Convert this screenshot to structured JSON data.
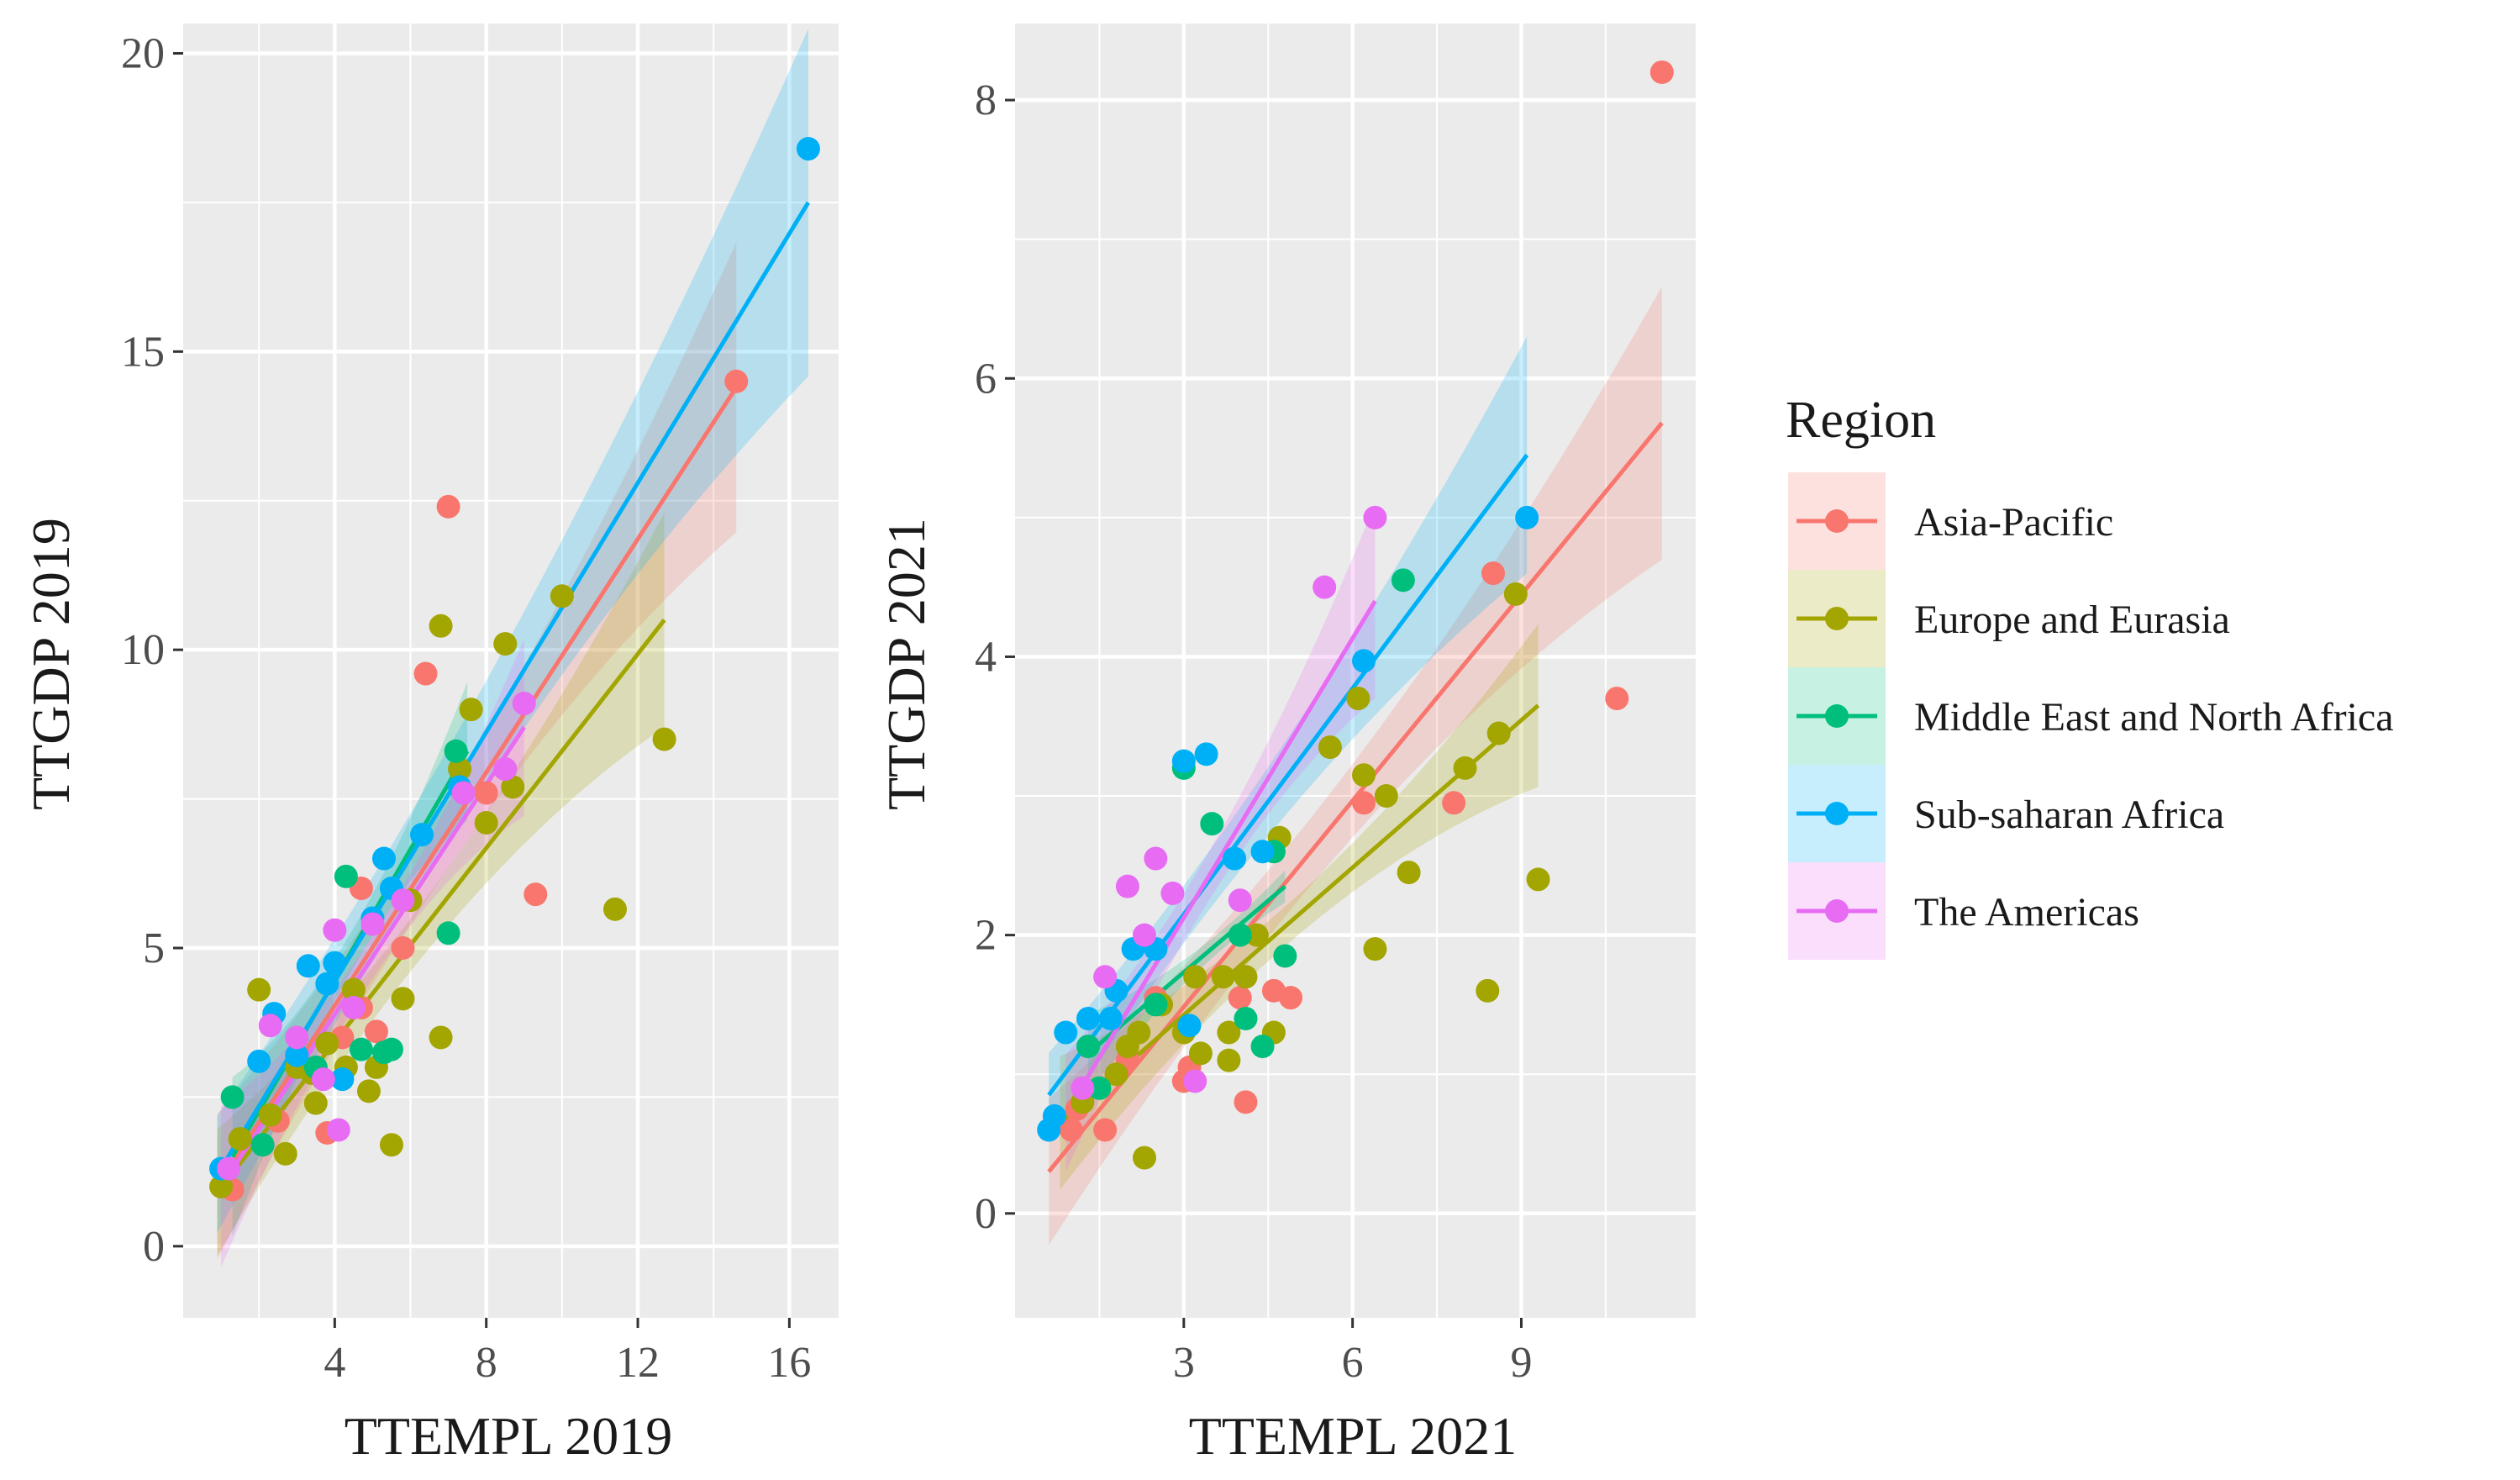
{
  "legend": {
    "title": "Region",
    "placement": "right",
    "entries": [
      {
        "name": "Asia-Pacific",
        "color": "#F8766D"
      },
      {
        "name": "Europe and Eurasia",
        "color": "#A3A500"
      },
      {
        "name": "Middle East and North Africa",
        "color": "#00BF7D"
      },
      {
        "name": "Sub-saharan Africa",
        "color": "#00B0F6"
      },
      {
        "name": "The Americas",
        "color": "#E76BF3"
      }
    ]
  },
  "chart_data": [
    {
      "type": "scatter",
      "title": "",
      "xlabel": "TTEMPL 2019",
      "ylabel": "TTGDP 2019",
      "xlim": [
        0,
        17.3
      ],
      "ylim": [
        -1.2,
        20.5
      ],
      "xticks": [
        4,
        8,
        12,
        16
      ],
      "yticks": [
        0,
        5,
        10,
        15,
        20
      ],
      "grid": true,
      "smooth": "linear fit with 95% confidence band per region",
      "series": [
        {
          "name": "Asia-Pacific",
          "color": "#F8766D",
          "points": [
            [
              1.3,
              0.95
            ],
            [
              2.5,
              2.1
            ],
            [
              3.5,
              3.0
            ],
            [
              3.8,
              1.9
            ],
            [
              4.2,
              3.5
            ],
            [
              4.7,
              4.0
            ],
            [
              4.7,
              6.0
            ],
            [
              5.1,
              3.6
            ],
            [
              5.8,
              5.0
            ],
            [
              6.4,
              9.6
            ],
            [
              7.0,
              12.4
            ],
            [
              8.0,
              7.6
            ],
            [
              8.5,
              8.0
            ],
            [
              9.3,
              5.9
            ],
            [
              14.6,
              14.5
            ]
          ],
          "fit": {
            "x": [
              0.9,
              14.6
            ],
            "y": [
              1.0,
              14.4
            ]
          }
        },
        {
          "name": "Europe and Eurasia",
          "color": "#A3A500",
          "points": [
            [
              1.0,
              1.0
            ],
            [
              1.5,
              1.8
            ],
            [
              2.0,
              4.3
            ],
            [
              2.3,
              2.2
            ],
            [
              2.7,
              1.55
            ],
            [
              3.0,
              3.0
            ],
            [
              3.4,
              2.9
            ],
            [
              3.5,
              2.4
            ],
            [
              3.8,
              3.4
            ],
            [
              4.3,
              3.0
            ],
            [
              4.5,
              4.3
            ],
            [
              4.9,
              2.6
            ],
            [
              5.1,
              3.0
            ],
            [
              5.5,
              1.7
            ],
            [
              5.8,
              4.15
            ],
            [
              6.0,
              5.8
            ],
            [
              6.8,
              3.5
            ],
            [
              6.8,
              10.4
            ],
            [
              7.3,
              8.0
            ],
            [
              7.6,
              9.0
            ],
            [
              8.0,
              7.1
            ],
            [
              8.5,
              10.1
            ],
            [
              8.7,
              7.7
            ],
            [
              10.0,
              10.9
            ],
            [
              11.4,
              5.65
            ],
            [
              12.7,
              8.5
            ]
          ],
          "fit": {
            "x": [
              0.9,
              12.7
            ],
            "y": [
              0.9,
              10.5
            ]
          }
        },
        {
          "name": "Middle East and North Africa",
          "color": "#00BF7D",
          "points": [
            [
              1.3,
              2.5
            ],
            [
              2.1,
              1.7
            ],
            [
              3.5,
              3.0
            ],
            [
              4.3,
              6.2
            ],
            [
              4.7,
              3.3
            ],
            [
              5.3,
              3.25
            ],
            [
              5.5,
              3.3
            ],
            [
              7.0,
              5.25
            ],
            [
              7.2,
              8.3
            ]
          ],
          "fit": {
            "x": [
              1.3,
              7.5
            ],
            "y": [
              1.5,
              8.3
            ]
          }
        },
        {
          "name": "Sub-saharan Africa",
          "color": "#00B0F6",
          "points": [
            [
              1.0,
              1.3
            ],
            [
              2.0,
              3.1
            ],
            [
              2.4,
              3.9
            ],
            [
              3.0,
              3.2
            ],
            [
              3.3,
              4.7
            ],
            [
              3.8,
              4.4
            ],
            [
              4.0,
              4.75
            ],
            [
              4.2,
              2.8
            ],
            [
              5.0,
              5.5
            ],
            [
              5.3,
              6.5
            ],
            [
              5.5,
              6.0
            ],
            [
              6.3,
              6.9
            ],
            [
              7.3,
              7.7
            ],
            [
              16.5,
              18.4
            ]
          ],
          "fit": {
            "x": [
              0.9,
              16.5
            ],
            "y": [
              1.2,
              17.5
            ]
          }
        },
        {
          "name": "The Americas",
          "color": "#E76BF3",
          "points": [
            [
              1.2,
              1.3
            ],
            [
              2.3,
              3.7
            ],
            [
              3.0,
              3.5
            ],
            [
              3.7,
              2.8
            ],
            [
              4.0,
              5.3
            ],
            [
              4.1,
              1.95
            ],
            [
              4.5,
              4.0
            ],
            [
              5.0,
              5.4
            ],
            [
              5.8,
              5.8
            ],
            [
              7.4,
              7.6
            ],
            [
              8.5,
              8.0
            ],
            [
              9.0,
              9.1
            ]
          ],
          "fit": {
            "x": [
              1.0,
              9.0
            ],
            "y": [
              1.0,
              8.7
            ]
          }
        }
      ]
    },
    {
      "type": "scatter",
      "title": "",
      "xlabel": "TTEMPL 2021",
      "ylabel": "TTGDP 2021",
      "xlim": [
        0.0,
        12.1
      ],
      "ylim": [
        -0.75,
        8.55
      ],
      "xticks": [
        3,
        6,
        9
      ],
      "yticks": [
        0,
        2,
        4,
        6,
        8
      ],
      "grid": true,
      "smooth": "linear fit with 95% confidence band per region",
      "series": [
        {
          "name": "Asia-Pacific",
          "color": "#F8766D",
          "points": [
            [
              1.0,
              0.6
            ],
            [
              1.1,
              0.75
            ],
            [
              1.6,
              0.6
            ],
            [
              2.0,
              1.1
            ],
            [
              2.5,
              1.55
            ],
            [
              3.0,
              0.95
            ],
            [
              3.1,
              1.05
            ],
            [
              4.0,
              1.55
            ],
            [
              4.1,
              0.8
            ],
            [
              4.6,
              1.6
            ],
            [
              4.9,
              1.55
            ],
            [
              6.2,
              2.95
            ],
            [
              7.8,
              2.95
            ],
            [
              8.5,
              4.6
            ],
            [
              10.7,
              3.7
            ],
            [
              11.5,
              8.2
            ]
          ],
          "fit": {
            "x": [
              0.6,
              11.5
            ],
            "y": [
              0.3,
              5.68
            ]
          }
        },
        {
          "name": "Europe and Eurasia",
          "color": "#A3A500",
          "points": [
            [
              1.2,
              0.8
            ],
            [
              1.5,
              0.9
            ],
            [
              1.8,
              1.0
            ],
            [
              2.0,
              1.2
            ],
            [
              2.2,
              1.3
            ],
            [
              2.3,
              0.4
            ],
            [
              2.6,
              1.5
            ],
            [
              3.0,
              1.3
            ],
            [
              3.2,
              1.7
            ],
            [
              3.3,
              1.15
            ],
            [
              3.7,
              1.7
            ],
            [
              3.8,
              1.1
            ],
            [
              3.8,
              1.3
            ],
            [
              4.1,
              1.7
            ],
            [
              4.3,
              2.0
            ],
            [
              4.6,
              1.3
            ],
            [
              4.7,
              2.7
            ],
            [
              5.6,
              3.35
            ],
            [
              6.1,
              3.7
            ],
            [
              6.2,
              3.15
            ],
            [
              6.4,
              1.9
            ],
            [
              6.6,
              3.0
            ],
            [
              7.0,
              2.45
            ],
            [
              8.0,
              3.2
            ],
            [
              8.4,
              1.6
            ],
            [
              8.6,
              3.45
            ],
            [
              8.9,
              4.45
            ],
            [
              9.3,
              2.4
            ]
          ],
          "fit": {
            "x": [
              0.8,
              9.3
            ],
            "y": [
              0.65,
              3.65
            ]
          }
        },
        {
          "name": "Middle East and North Africa",
          "color": "#00BF7D",
          "points": [
            [
              1.3,
              1.2
            ],
            [
              1.5,
              0.9
            ],
            [
              2.5,
              1.5
            ],
            [
              3.0,
              3.2
            ],
            [
              3.5,
              2.8
            ],
            [
              4.0,
              2.0
            ],
            [
              4.1,
              1.4
            ],
            [
              4.4,
              1.2
            ],
            [
              4.6,
              2.6
            ],
            [
              4.8,
              1.85
            ],
            [
              6.9,
              4.55
            ]
          ],
          "fit": {
            "x": [
              1.3,
              4.8
            ],
            "y": [
              1.15,
              2.35
            ]
          }
        },
        {
          "name": "Sub-saharan Africa",
          "color": "#00B0F6",
          "points": [
            [
              0.6,
              0.6
            ],
            [
              0.7,
              0.7
            ],
            [
              0.9,
              1.3
            ],
            [
              1.3,
              1.4
            ],
            [
              1.7,
              1.4
            ],
            [
              1.8,
              1.6
            ],
            [
              2.1,
              1.9
            ],
            [
              2.5,
              1.9
            ],
            [
              3.0,
              3.25
            ],
            [
              3.1,
              1.35
            ],
            [
              3.4,
              3.3
            ],
            [
              3.9,
              2.55
            ],
            [
              4.4,
              2.6
            ],
            [
              6.2,
              3.97
            ],
            [
              9.1,
              5.0
            ]
          ],
          "fit": {
            "x": [
              0.6,
              9.1
            ],
            "y": [
              0.85,
              5.45
            ]
          }
        },
        {
          "name": "The Americas",
          "color": "#E76BF3",
          "points": [
            [
              1.2,
              0.9
            ],
            [
              1.6,
              1.7
            ],
            [
              2.0,
              2.35
            ],
            [
              2.3,
              2.0
            ],
            [
              2.5,
              2.55
            ],
            [
              2.8,
              2.3
            ],
            [
              3.2,
              0.95
            ],
            [
              4.0,
              2.25
            ],
            [
              5.5,
              4.5
            ],
            [
              6.4,
              5.0
            ]
          ],
          "fit": {
            "x": [
              0.9,
              6.4
            ],
            "y": [
              0.72,
              4.4
            ]
          }
        }
      ]
    }
  ]
}
